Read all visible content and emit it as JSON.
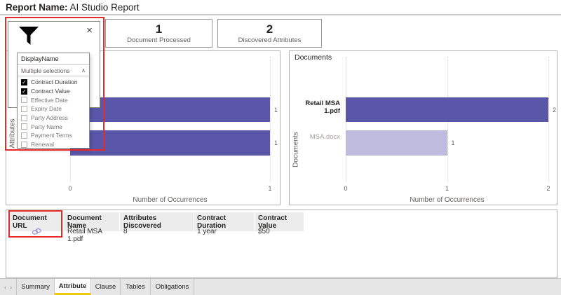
{
  "header": {
    "label": "Report Name:",
    "title": "AI Studio Report"
  },
  "kpi_cards": [
    {
      "value": "1",
      "label": "Document Processed"
    },
    {
      "value": "2",
      "label": "Discovered Attributes"
    }
  ],
  "filter": {
    "field": "DisplayName",
    "summary": "Multiple selections",
    "options": [
      {
        "label": "Contract Duration",
        "checked": true
      },
      {
        "label": "Contract Value",
        "checked": true
      },
      {
        "label": "Effective Date",
        "checked": false
      },
      {
        "label": "Expiry Date",
        "checked": false
      },
      {
        "label": "Party Address",
        "checked": false
      },
      {
        "label": "Party Name",
        "checked": false
      },
      {
        "label": "Payment Terms",
        "checked": false
      },
      {
        "label": "Renewal",
        "checked": false
      }
    ]
  },
  "chart_data": [
    {
      "type": "bar",
      "orientation": "horizontal",
      "title": "",
      "categories": [
        "",
        ""
      ],
      "values": [
        1,
        1
      ],
      "value_labels": [
        "1",
        "1"
      ],
      "xlabel": "Number of Occurrences",
      "ylabel": "Attributes",
      "xlim": [
        0,
        1
      ],
      "x_ticks": [
        "0",
        "1"
      ],
      "bar_colors": [
        "#5b57a8",
        "#5b57a8"
      ],
      "grid": "dotted-vertical",
      "note": "category labels hidden behind open filter dropdown"
    },
    {
      "type": "bar",
      "orientation": "horizontal",
      "title": "Documents",
      "categories": [
        "Retail MSA 1.pdf",
        "MSA.docx"
      ],
      "values": [
        2,
        1
      ],
      "value_labels": [
        "2",
        "1"
      ],
      "xlabel": "Number of Occurrences",
      "ylabel": "Documents",
      "xlim": [
        0,
        2
      ],
      "x_ticks": [
        "0",
        "1",
        "2"
      ],
      "bar_colors": [
        "#5b57a8",
        "#bebbde"
      ],
      "grid": "dotted-vertical"
    }
  ],
  "table": {
    "columns": [
      "Document URL",
      "Document Name",
      "Attributes Discovered",
      "Contract Duration",
      "Contract Value"
    ],
    "sorted_column": "Document Name",
    "rows": [
      {
        "document_url": "",
        "document_name": "Retail MSA 1.pdf",
        "attributes_discovered": "8",
        "contract_duration": "1 year",
        "contract_value": "$50"
      }
    ]
  },
  "tabs": {
    "items": [
      "Summary",
      "Attribute",
      "Clause",
      "Tables",
      "Obligations"
    ],
    "active": "Attribute"
  },
  "icons": {
    "close": "×",
    "chevron_up": "∧",
    "check": "✓",
    "sort_desc": "▾",
    "nav_prev": "‹",
    "nav_next": "›"
  },
  "colors": {
    "bar_primary": "#5b57a8",
    "bar_muted": "#bebbde",
    "annotation_red": "#e42b2b",
    "active_tab_underline": "#f2c811"
  }
}
